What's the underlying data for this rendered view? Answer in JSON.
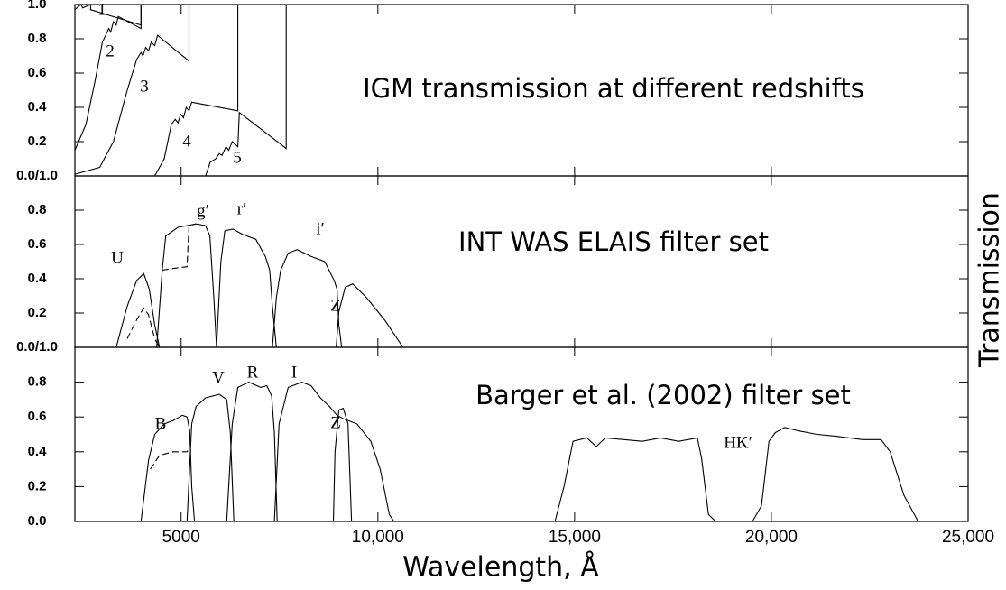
{
  "chart_data": [
    {
      "type": "line",
      "title": "IGM transmission at different redshifts",
      "color": "#000000",
      "xlim": [
        2300,
        25000
      ],
      "ylim": [
        0,
        1
      ],
      "yticks": [
        {
          "value": 0,
          "label": "0.0/1.0"
        },
        0.2,
        0.4,
        0.6,
        0.8,
        {
          "value": 1,
          "label": "1.0"
        }
      ],
      "series": [
        {
          "name": "1",
          "x": [
            2300,
            2450,
            2500,
            2700,
            2700,
            3980,
            3980
          ],
          "values": [
            0.97,
            1.0,
            0.98,
            1.0,
            0.97,
            0.88,
            1.0
          ]
        },
        {
          "name": "2",
          "x": [
            2300,
            2580,
            2810,
            3000,
            3120,
            3160,
            3210,
            3280,
            3350,
            3400,
            3980,
            3980
          ],
          "values": [
            0.15,
            0.3,
            0.55,
            0.78,
            0.84,
            0.86,
            0.84,
            0.9,
            0.88,
            0.93,
            0.86,
            1.0
          ]
        },
        {
          "name": "3",
          "x": [
            2300,
            2930,
            3280,
            3630,
            3870,
            3980,
            4030,
            4100,
            4170,
            4240,
            4330,
            4400,
            5200,
            5200
          ],
          "values": [
            0.01,
            0.05,
            0.2,
            0.5,
            0.68,
            0.72,
            0.7,
            0.75,
            0.73,
            0.78,
            0.76,
            0.82,
            0.67,
            1.0
          ]
        },
        {
          "name": "4",
          "x": [
            4330,
            4570,
            4750,
            4850,
            4920,
            4990,
            5060,
            5130,
            5200,
            5270,
            6440,
            6440
          ],
          "values": [
            0.0,
            0.1,
            0.3,
            0.33,
            0.31,
            0.36,
            0.34,
            0.4,
            0.38,
            0.43,
            0.38,
            1.0
          ]
        },
        {
          "name": "5",
          "x": [
            5620,
            5740,
            5880,
            5970,
            6040,
            6140,
            6210,
            6300,
            6440,
            6480,
            7670,
            7670
          ],
          "values": [
            0.0,
            0.08,
            0.1,
            0.13,
            0.12,
            0.17,
            0.15,
            0.2,
            0.17,
            0.37,
            0.16,
            1.0
          ]
        }
      ]
    },
    {
      "type": "line",
      "title": "INT WAS ELAIS filter set",
      "color": "#000000",
      "ylabel": "Transmission",
      "xlim": [
        2300,
        25000
      ],
      "ylim": [
        0,
        1
      ],
      "yticks": [
        {
          "value": 0,
          "label": "0.0/1.0"
        },
        0.2,
        0.4,
        0.6,
        0.8
      ],
      "series": [
        {
          "name": "U",
          "x": [
            3350,
            3630,
            3870,
            4050,
            4190,
            4330,
            4450
          ],
          "values": [
            0.0,
            0.24,
            0.39,
            0.43,
            0.34,
            0.13,
            0.0
          ]
        },
        {
          "dash": true,
          "x": [
            3630,
            3870,
            4050,
            4170,
            4330,
            4450
          ],
          "values": [
            0.05,
            0.16,
            0.23,
            0.19,
            0.05,
            0.0
          ]
        },
        {
          "name": "g′",
          "x": [
            4380,
            4520,
            4610,
            4920,
            5380,
            5620,
            5730,
            5830,
            5900
          ],
          "values": [
            0.0,
            0.45,
            0.65,
            0.7,
            0.72,
            0.71,
            0.65,
            0.29,
            0.0
          ]
        },
        {
          "dash": true,
          "x": [
            4520,
            4800,
            5150,
            5200,
            5380
          ],
          "values": [
            0.45,
            0.46,
            0.47,
            0.71,
            0.72
          ]
        },
        {
          "name": "r′",
          "x": [
            5900,
            6010,
            6110,
            6320,
            6550,
            6900,
            7140,
            7250,
            7320,
            7420
          ],
          "values": [
            0.0,
            0.5,
            0.68,
            0.69,
            0.66,
            0.63,
            0.53,
            0.45,
            0.24,
            0.0
          ]
        },
        {
          "name": "i′",
          "x": [
            7320,
            7420,
            7530,
            7720,
            7950,
            8300,
            8650,
            8890,
            8960,
            9010,
            9080
          ],
          "values": [
            0.0,
            0.29,
            0.45,
            0.55,
            0.57,
            0.53,
            0.5,
            0.39,
            0.34,
            0.13,
            0.0
          ]
        },
        {
          "name": "Z",
          "x": [
            8940,
            9010,
            9170,
            9360,
            9710,
            10170,
            10640
          ],
          "values": [
            0.0,
            0.21,
            0.35,
            0.37,
            0.29,
            0.16,
            0.0
          ]
        }
      ]
    },
    {
      "type": "line",
      "title": "Barger et al. (2002) filter set",
      "color": "#000000",
      "xlabel": "Wavelength, Å",
      "xlim": [
        2300,
        25000
      ],
      "ylim": [
        0,
        1
      ],
      "xticks": [
        5000,
        {
          "value": 10000,
          "label": "10,000"
        },
        {
          "value": 15000,
          "label": "15,000"
        },
        {
          "value": 20000,
          "label": "20,000"
        },
        {
          "value": 25000,
          "label": "25,000"
        }
      ],
      "yticks": [
        {
          "value": 0,
          "label": "0.0"
        },
        0.2,
        0.4,
        0.6,
        0.8
      ],
      "series": [
        {
          "name": "B",
          "x": [
            3980,
            4170,
            4330,
            4570,
            4800,
            5030,
            5150,
            5220,
            5270,
            5340
          ],
          "values": [
            0.0,
            0.35,
            0.5,
            0.56,
            0.58,
            0.61,
            0.6,
            0.52,
            0.2,
            0.0
          ]
        },
        {
          "dash": true,
          "x": [
            4220,
            4450,
            4800,
            5150,
            5220
          ],
          "values": [
            0.3,
            0.38,
            0.4,
            0.4,
            0.42
          ]
        },
        {
          "name": "V",
          "x": [
            5150,
            5270,
            5380,
            5620,
            5970,
            6160,
            6250,
            6340
          ],
          "values": [
            0.0,
            0.56,
            0.66,
            0.71,
            0.73,
            0.7,
            0.51,
            0.0
          ]
        },
        {
          "name": "R",
          "x": [
            6160,
            6300,
            6440,
            6720,
            7020,
            7180,
            7300,
            7370,
            7440
          ],
          "values": [
            0.0,
            0.56,
            0.77,
            0.8,
            0.77,
            0.78,
            0.72,
            0.51,
            0.0
          ]
        },
        {
          "name": "I",
          "x": [
            7370,
            7490,
            7720,
            8070,
            8300,
            8540,
            8770,
            8960,
            9120,
            9470,
            9820,
            10060,
            10290,
            10410
          ],
          "values": [
            0.0,
            0.56,
            0.77,
            0.8,
            0.78,
            0.71,
            0.66,
            0.61,
            0.59,
            0.56,
            0.46,
            0.3,
            0.04,
            0.0
          ]
        },
        {
          "name": "Z",
          "x": [
            8870,
            8910,
            9010,
            9120,
            9240,
            9290,
            9330
          ],
          "values": [
            0.0,
            0.4,
            0.64,
            0.65,
            0.56,
            0.25,
            0.0
          ]
        },
        {
          "x": [
            14500,
            14730,
            14960,
            15310,
            15550,
            15780,
            16250,
            16720,
            17180,
            17650,
            18120,
            18230,
            18400,
            18590
          ],
          "values": [
            0.0,
            0.2,
            0.46,
            0.48,
            0.43,
            0.48,
            0.47,
            0.46,
            0.48,
            0.46,
            0.48,
            0.36,
            0.04,
            0.0
          ]
        },
        {
          "name": "HK′",
          "x": [
            19520,
            19750,
            19940,
            20100,
            20340,
            20690,
            21160,
            21620,
            22320,
            22790,
            23020,
            23370,
            23730
          ],
          "values": [
            0.0,
            0.09,
            0.46,
            0.51,
            0.54,
            0.52,
            0.5,
            0.49,
            0.47,
            0.47,
            0.4,
            0.15,
            0.0
          ]
        }
      ]
    }
  ]
}
